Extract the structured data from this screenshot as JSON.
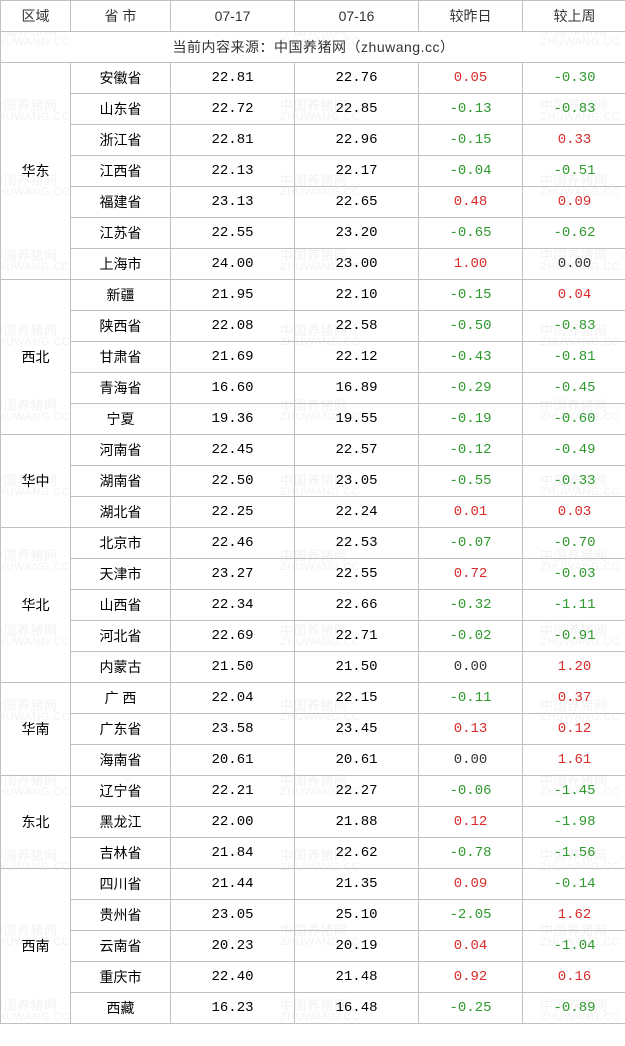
{
  "table": {
    "headers": [
      "区域",
      "省 市",
      "07-17",
      "07-16",
      "较昨日",
      "较上周"
    ],
    "source_line": "当前内容来源：中国养猪网（zhuwang.cc）",
    "positive_color": "#d82c2c",
    "negative_color": "#2e9a2e",
    "zero_color": "#333333",
    "border_color": "#bfbfbf",
    "font_size": 14,
    "regions": [
      {
        "name": "华东",
        "rows": [
          {
            "prov": "安徽省",
            "d1": "22.81",
            "d0": "22.76",
            "dy": "0.05",
            "dw": "-0.30"
          },
          {
            "prov": "山东省",
            "d1": "22.72",
            "d0": "22.85",
            "dy": "-0.13",
            "dw": "-0.83"
          },
          {
            "prov": "浙江省",
            "d1": "22.81",
            "d0": "22.96",
            "dy": "-0.15",
            "dw": "0.33"
          },
          {
            "prov": "江西省",
            "d1": "22.13",
            "d0": "22.17",
            "dy": "-0.04",
            "dw": "-0.51"
          },
          {
            "prov": "福建省",
            "d1": "23.13",
            "d0": "22.65",
            "dy": "0.48",
            "dw": "0.09"
          },
          {
            "prov": "江苏省",
            "d1": "22.55",
            "d0": "23.20",
            "dy": "-0.65",
            "dw": "-0.62"
          },
          {
            "prov": "上海市",
            "d1": "24.00",
            "d0": "23.00",
            "dy": "1.00",
            "dw": "0.00"
          }
        ]
      },
      {
        "name": "西北",
        "rows": [
          {
            "prov": "新疆",
            "d1": "21.95",
            "d0": "22.10",
            "dy": "-0.15",
            "dw": "0.04"
          },
          {
            "prov": "陕西省",
            "d1": "22.08",
            "d0": "22.58",
            "dy": "-0.50",
            "dw": "-0.83"
          },
          {
            "prov": "甘肃省",
            "d1": "21.69",
            "d0": "22.12",
            "dy": "-0.43",
            "dw": "-0.81"
          },
          {
            "prov": "青海省",
            "d1": "16.60",
            "d0": "16.89",
            "dy": "-0.29",
            "dw": "-0.45"
          },
          {
            "prov": "宁夏",
            "d1": "19.36",
            "d0": "19.55",
            "dy": "-0.19",
            "dw": "-0.60"
          }
        ]
      },
      {
        "name": "华中",
        "rows": [
          {
            "prov": "河南省",
            "d1": "22.45",
            "d0": "22.57",
            "dy": "-0.12",
            "dw": "-0.49"
          },
          {
            "prov": "湖南省",
            "d1": "22.50",
            "d0": "23.05",
            "dy": "-0.55",
            "dw": "-0.33"
          },
          {
            "prov": "湖北省",
            "d1": "22.25",
            "d0": "22.24",
            "dy": "0.01",
            "dw": "0.03"
          }
        ]
      },
      {
        "name": "华北",
        "rows": [
          {
            "prov": "北京市",
            "d1": "22.46",
            "d0": "22.53",
            "dy": "-0.07",
            "dw": "-0.70"
          },
          {
            "prov": "天津市",
            "d1": "23.27",
            "d0": "22.55",
            "dy": "0.72",
            "dw": "-0.03"
          },
          {
            "prov": "山西省",
            "d1": "22.34",
            "d0": "22.66",
            "dy": "-0.32",
            "dw": "-1.11"
          },
          {
            "prov": "河北省",
            "d1": "22.69",
            "d0": "22.71",
            "dy": "-0.02",
            "dw": "-0.91"
          },
          {
            "prov": "内蒙古",
            "d1": "21.50",
            "d0": "21.50",
            "dy": "0.00",
            "dw": "1.20"
          }
        ]
      },
      {
        "name": "华南",
        "rows": [
          {
            "prov": "广 西",
            "d1": "22.04",
            "d0": "22.15",
            "dy": "-0.11",
            "dw": "0.37"
          },
          {
            "prov": "广东省",
            "d1": "23.58",
            "d0": "23.45",
            "dy": "0.13",
            "dw": "0.12"
          },
          {
            "prov": "海南省",
            "d1": "20.61",
            "d0": "20.61",
            "dy": "0.00",
            "dw": "1.61"
          }
        ]
      },
      {
        "name": "东北",
        "rows": [
          {
            "prov": "辽宁省",
            "d1": "22.21",
            "d0": "22.27",
            "dy": "-0.06",
            "dw": "-1.45"
          },
          {
            "prov": "黑龙江",
            "d1": "22.00",
            "d0": "21.88",
            "dy": "0.12",
            "dw": "-1.98"
          },
          {
            "prov": "吉林省",
            "d1": "21.84",
            "d0": "22.62",
            "dy": "-0.78",
            "dw": "-1.56"
          }
        ]
      },
      {
        "name": "西南",
        "rows": [
          {
            "prov": "四川省",
            "d1": "21.44",
            "d0": "21.35",
            "dy": "0.09",
            "dw": "-0.14"
          },
          {
            "prov": "贵州省",
            "d1": "23.05",
            "d0": "25.10",
            "dy": "-2.05",
            "dw": "1.62"
          },
          {
            "prov": "云南省",
            "d1": "20.23",
            "d0": "20.19",
            "dy": "0.04",
            "dw": "-1.04"
          },
          {
            "prov": "重庆市",
            "d1": "22.40",
            "d0": "21.48",
            "dy": "0.92",
            "dw": "0.16"
          },
          {
            "prov": "西藏",
            "d1": "16.23",
            "d0": "16.48",
            "dy": "-0.25",
            "dw": "-0.89"
          }
        ]
      }
    ]
  },
  "watermark": {
    "text_cn": "中国养猪网",
    "text_en": "ZHUWANG.CC",
    "color": "#f2f2f2",
    "font_size": 13
  }
}
